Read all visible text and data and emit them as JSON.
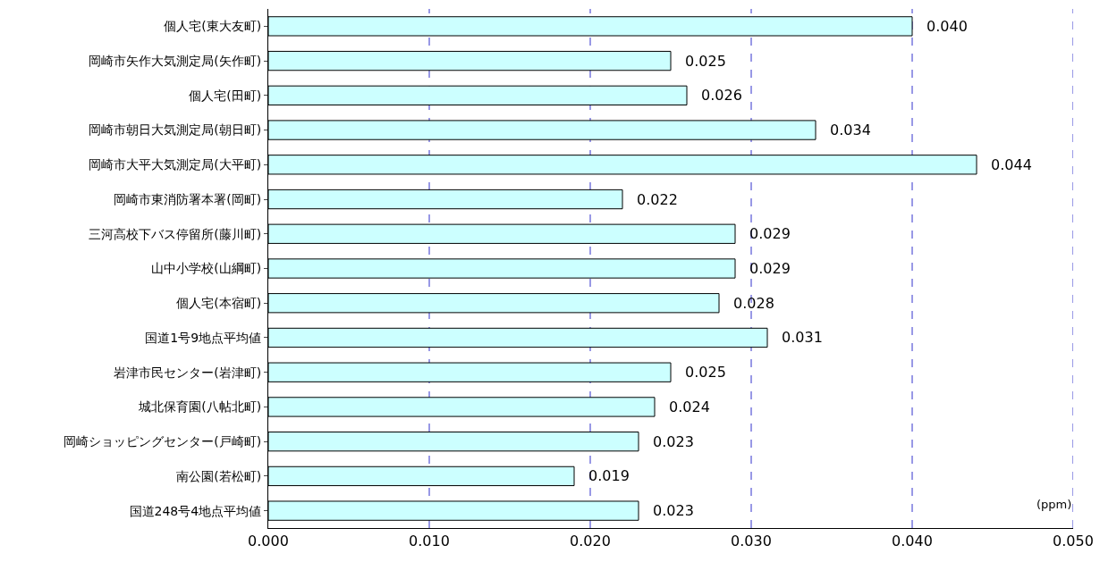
{
  "chart_data": {
    "type": "bar",
    "orientation": "horizontal",
    "categories": [
      "個人宅(東大友町)",
      "岡崎市矢作大気測定局(矢作町)",
      "個人宅(田町)",
      "岡崎市朝日大気測定局(朝日町)",
      "岡崎市大平大気測定局(大平町)",
      "岡崎市東消防署本署(岡町)",
      "三河高校下バス停留所(藤川町)",
      "山中小学校(山綱町)",
      "個人宅(本宿町)",
      "国道1号9地点平均値",
      "岩津市民センター(岩津町)",
      "城北保育園(八帖北町)",
      "岡崎ショッピングセンター(戸崎町)",
      "南公園(若松町)",
      "国道248号4地点平均値"
    ],
    "values": [
      0.04,
      0.025,
      0.026,
      0.034,
      0.044,
      0.022,
      0.029,
      0.029,
      0.028,
      0.031,
      0.025,
      0.024,
      0.023,
      0.019,
      0.023
    ],
    "value_labels": [
      "0.040",
      "0.025",
      "0.026",
      "0.034",
      "0.044",
      "0.022",
      "0.029",
      "0.029",
      "0.028",
      "0.031",
      "0.025",
      "0.024",
      "0.023",
      "0.019",
      "0.023"
    ],
    "color": "#ccffff",
    "xlim": [
      0,
      0.05
    ],
    "xticks": [
      {
        "value": 0,
        "label": "0.000"
      },
      {
        "value": 0.01,
        "label": "0.010"
      },
      {
        "value": 0.02,
        "label": "0.020"
      },
      {
        "value": 0.03,
        "label": "0.030"
      },
      {
        "value": 0.04,
        "label": "0.040"
      },
      {
        "value": 0.05,
        "label": "0.050"
      }
    ],
    "grid": "x",
    "line_style": "dashed",
    "annotations": [
      "(ppm)"
    ]
  }
}
